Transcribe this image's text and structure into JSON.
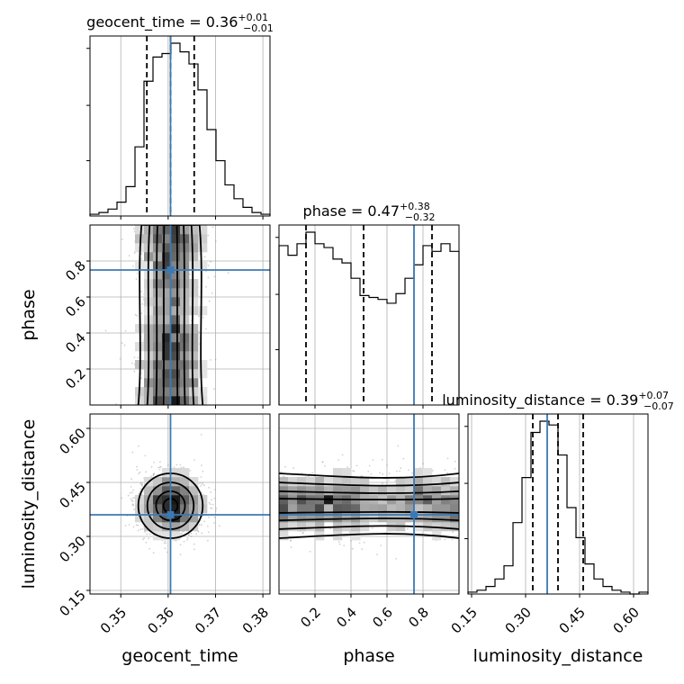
{
  "chart_data": {
    "type": "corner",
    "parameters": [
      "geocent_time",
      "phase",
      "luminosity_distance"
    ],
    "titles": [
      {
        "param": "geocent_time",
        "median": "0.36",
        "plus": "+0.01",
        "minus": "−0.01"
      },
      {
        "param": "phase",
        "median": "0.47",
        "plus": "+0.38",
        "minus": "−0.32"
      },
      {
        "param": "luminosity_distance",
        "median": "0.39",
        "plus": "+0.07",
        "minus": "−0.07"
      }
    ],
    "axes": {
      "geocent_time": {
        "range": [
          0.3435,
          0.3815
        ],
        "ticks": [
          0.35,
          0.36,
          0.37,
          0.38
        ],
        "tick_labels": [
          "0.35",
          "0.36",
          "0.37",
          "0.38"
        ]
      },
      "phase": {
        "range": [
          0.0,
          1.0
        ],
        "ticks": [
          0.2,
          0.4,
          0.6,
          0.8
        ],
        "tick_labels": [
          "0.2",
          "0.4",
          "0.6",
          "0.8"
        ]
      },
      "luminosity_distance": {
        "range": [
          0.14,
          0.64
        ],
        "ticks": [
          0.15,
          0.3,
          0.45,
          0.6
        ],
        "tick_labels": [
          "0.15",
          "0.30",
          "0.45",
          "0.60"
        ]
      }
    },
    "injected": {
      "geocent_time": 0.3605,
      "phase": 0.75,
      "luminosity_distance": 0.36
    },
    "quantiles": {
      "geocent_time": [
        0.3555,
        0.3605,
        0.3655
      ],
      "phase": [
        0.15,
        0.47,
        0.85
      ],
      "luminosity_distance": [
        0.32,
        0.39,
        0.46
      ]
    },
    "histograms": {
      "geocent_time": {
        "edges_from": 0.3435,
        "bin_width": 0.0019,
        "counts": [
          1,
          2,
          4,
          8,
          17,
          40,
          78,
          92,
          94,
          100,
          95,
          88,
          73,
          50,
          32,
          18,
          10,
          5,
          2,
          1
        ]
      },
      "phase": {
        "edges_from": 0.0,
        "bin_width": 0.05,
        "counts": [
          83,
          78,
          84,
          90,
          84,
          82,
          76,
          74,
          66,
          57,
          56,
          55,
          53,
          58,
          66,
          73,
          83,
          80,
          84,
          80
        ]
      },
      "luminosity_distance": {
        "edges_from": 0.14,
        "bin_width": 0.025,
        "counts": [
          1,
          2,
          4,
          8,
          15,
          38,
          62,
          86,
          92,
          90,
          74,
          46,
          30,
          16,
          8,
          4,
          2,
          1,
          0,
          1
        ]
      }
    },
    "grid": true
  }
}
